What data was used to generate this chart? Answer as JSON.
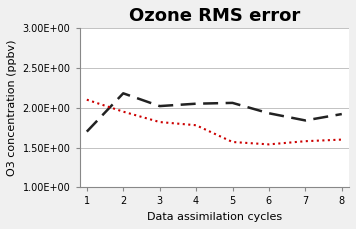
{
  "title": "Ozone RMS error",
  "xlabel": "Data assimilation cycles",
  "ylabel": "O3 concentration (ppbv)",
  "x": [
    1,
    2,
    3,
    4,
    5,
    6,
    7,
    8
  ],
  "black_line": [
    1.7,
    2.18,
    2.02,
    2.05,
    2.06,
    1.93,
    1.84,
    1.92
  ],
  "red_line": [
    2.1,
    1.95,
    1.82,
    1.78,
    1.57,
    1.54,
    1.58,
    1.6
  ],
  "black_color": "#222222",
  "red_color": "#cc0000",
  "ylim": [
    1.0,
    3.0
  ],
  "yticks": [
    1.0,
    1.5,
    2.0,
    2.5,
    3.0
  ],
  "xticks": [
    1,
    2,
    3,
    4,
    5,
    6,
    7,
    8
  ],
  "background_color": "#f0f0f0",
  "title_fontsize": 13,
  "label_fontsize": 8,
  "tick_fontsize": 7
}
